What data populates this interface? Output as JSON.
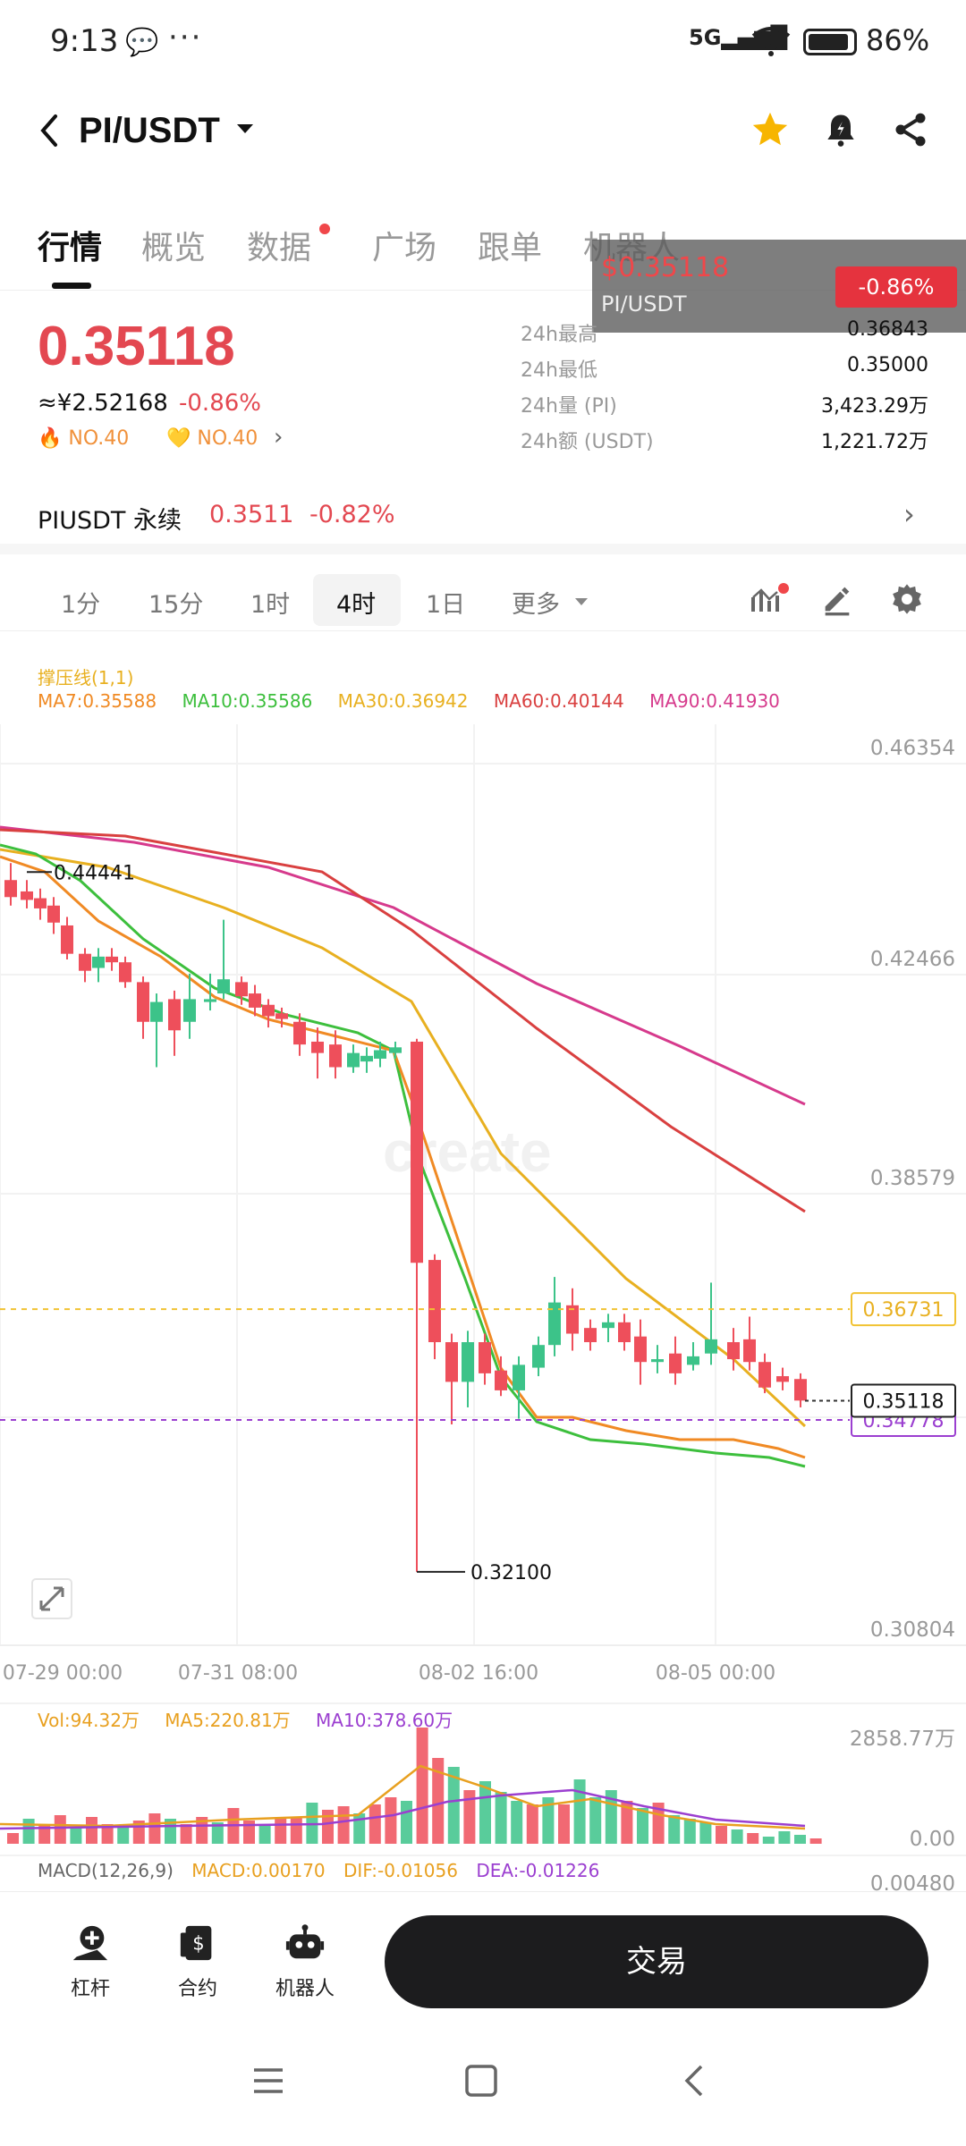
{
  "status": {
    "time": "9:13",
    "network": "5G",
    "battery": "86%"
  },
  "header": {
    "pair": "PI/USDT"
  },
  "tabs": [
    {
      "label": "行情"
    },
    {
      "label": "概览"
    },
    {
      "label": "数据"
    },
    {
      "label": "广场"
    },
    {
      "label": "跟单"
    },
    {
      "label": "机器人"
    }
  ],
  "ticker_popup": {
    "price": "$0.35118",
    "pair": "PI/USDT",
    "change": "-0.86%"
  },
  "summary": {
    "price": "0.35118",
    "cny": "≈¥2.52168",
    "change": "-0.86%",
    "rank_hot": "NO.40",
    "rank_fav": "NO.40"
  },
  "stats": [
    {
      "label": "24h最高",
      "value": "0.36843"
    },
    {
      "label": "24h最低",
      "value": "0.35000"
    },
    {
      "label": "24h量 (PI)",
      "value": "3,423.29万"
    },
    {
      "label": "24h额 (USDT)",
      "value": "1,221.72万"
    }
  ],
  "perpetual": {
    "label": "PIUSDT 永续",
    "price": "0.3511",
    "change": "-0.82%"
  },
  "intervals": {
    "items": [
      "1分",
      "15分",
      "1时",
      "4时",
      "1日"
    ],
    "active": "4时",
    "more": "更多"
  },
  "chart": {
    "indicator_title": "撑压线(1,1)",
    "ma_legend": [
      {
        "text": "MA7:0.35588",
        "color": "#f08a24"
      },
      {
        "text": "MA10:0.35586",
        "color": "#3dbf3d"
      },
      {
        "text": "MA30:0.36942",
        "color": "#e8b020"
      },
      {
        "text": "MA60:0.40144",
        "color": "#d94040"
      },
      {
        "text": "MA90:0.41930",
        "color": "#d63a8c"
      }
    ],
    "y_ticks": [
      "0.46354",
      "0.42466",
      "0.38579",
      "0.30804"
    ],
    "x_ticks": [
      "07-29 00:00",
      "07-31 08:00",
      "08-02 16:00",
      "08-05 00:00"
    ],
    "high_label": "0.44441",
    "low_label": "0.32100",
    "resistance": "0.36731",
    "support": "0.34778",
    "last_price": "0.35118",
    "watermark": "create"
  },
  "volume": {
    "vol": "Vol:94.32万",
    "ma5": "MA5:220.81万",
    "ma10": "MA10:378.60万",
    "max_tick": "2858.77万",
    "zero_tick": "0.00"
  },
  "macd": {
    "title": "MACD(12,26,9)",
    "macd": "MACD:0.00170",
    "dif": "DIF:-0.01056",
    "dea": "DEA:-0.01226",
    "tick": "0.00480"
  },
  "bottom": {
    "tools": [
      {
        "label": "杠杆"
      },
      {
        "label": "合约"
      },
      {
        "label": "机器人"
      }
    ],
    "trade": "交易"
  },
  "colors": {
    "up": "#3cc389",
    "down": "#ee4f5b",
    "accent": "#e34851"
  }
}
